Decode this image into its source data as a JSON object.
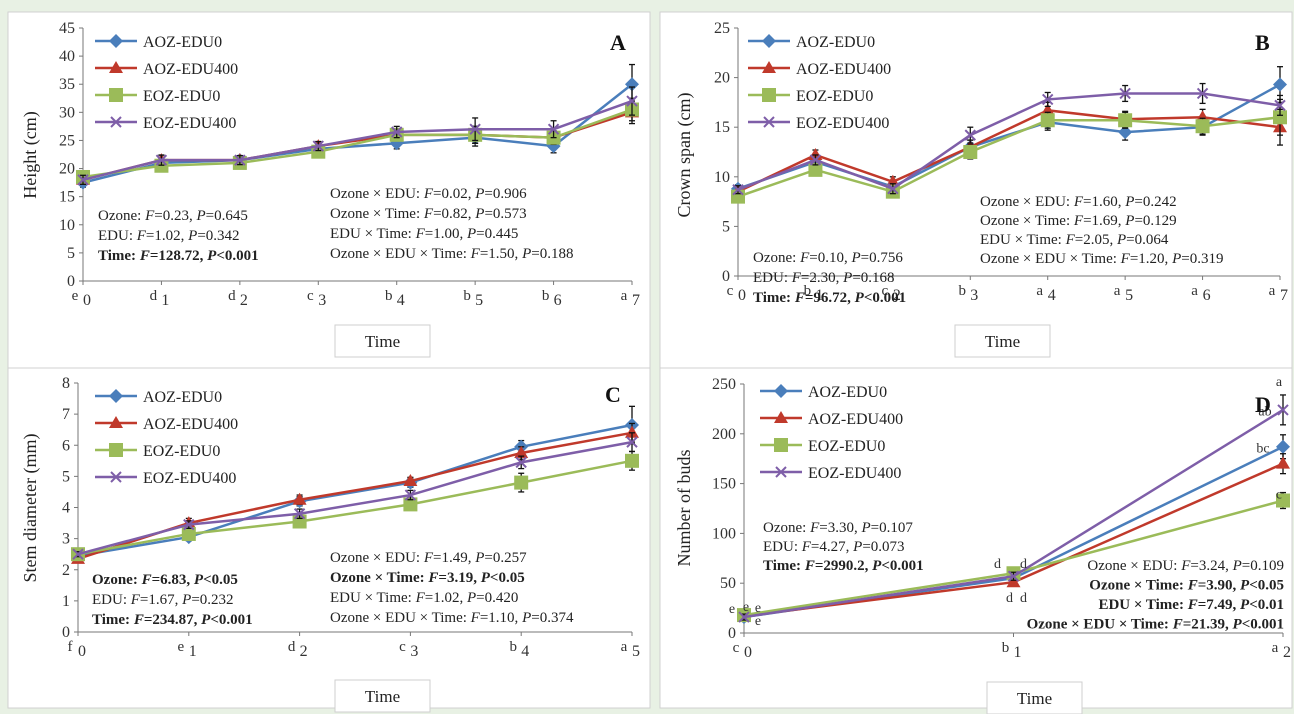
{
  "colors": {
    "AOZ-EDU0": "#4a7ebb",
    "AOZ-EDU400": "#c0392b",
    "EOZ-EDU0": "#9bbb59",
    "EOZ-EDU400": "#7e5ea8"
  },
  "chart_data": [
    {
      "panel": "A",
      "type": "line",
      "ylabel": "Height (cm)",
      "xlabel": "Time",
      "ylim": [
        0,
        45
      ],
      "yticks": [
        0,
        5,
        10,
        15,
        20,
        25,
        30,
        35,
        40,
        45
      ],
      "categories": [
        "0",
        "1",
        "2",
        "3",
        "4",
        "5",
        "6",
        "7"
      ],
      "letters": [
        "e",
        "d",
        "d",
        "c",
        "b",
        "b",
        "b",
        "a"
      ],
      "series": [
        {
          "name": "AOZ-EDU0",
          "values": [
            17.5,
            21.0,
            21.5,
            23.5,
            24.5,
            25.5,
            24.0,
            35.0
          ],
          "err": [
            0.8,
            0.9,
            0.8,
            0.8,
            1.0,
            1.5,
            1.2,
            3.5
          ]
        },
        {
          "name": "AOZ-EDU400",
          "values": [
            18.0,
            21.5,
            21.5,
            24.0,
            26.0,
            26.0,
            25.5,
            30.0
          ],
          "err": [
            0.8,
            0.9,
            0.8,
            0.8,
            1.0,
            1.5,
            1.2,
            2.0
          ]
        },
        {
          "name": "EOZ-EDU0",
          "values": [
            18.5,
            20.5,
            21.0,
            23.0,
            26.0,
            26.0,
            25.5,
            30.5
          ],
          "err": [
            0.8,
            0.9,
            0.8,
            0.8,
            1.0,
            1.5,
            1.2,
            2.0
          ]
        },
        {
          "name": "EOZ-EDU400",
          "values": [
            18.0,
            21.5,
            21.5,
            24.0,
            26.5,
            27.0,
            27.0,
            32.0
          ],
          "err": [
            0.8,
            0.9,
            0.8,
            0.8,
            1.0,
            2.0,
            1.5,
            2.5
          ]
        }
      ],
      "stats_left": [
        {
          "label": "Ozone: ",
          "F": "0.23",
          "P": "0.645",
          "bold": false
        },
        {
          "label": "EDU: ",
          "F": "1.02",
          "P": "0.342",
          "bold": false
        },
        {
          "label": "Time: ",
          "F": "128.72",
          "P": "<0.001",
          "bold": true
        }
      ],
      "stats_right": [
        {
          "label": "Ozone × EDU: ",
          "F": "0.02",
          "P": "0.906",
          "bold": false
        },
        {
          "label": "Ozone × Time: ",
          "F": "0.82",
          "P": "0.573",
          "bold": false
        },
        {
          "label": "EDU × Time: ",
          "F": "1.00",
          "P": "0.445",
          "bold": false
        },
        {
          "label": "Ozone × EDU × Time: ",
          "F": "1.50",
          "P": "0.188",
          "bold": false
        }
      ]
    },
    {
      "panel": "B",
      "type": "line",
      "ylabel": "Crown span (cm)",
      "xlabel": "Time",
      "ylim": [
        0,
        25
      ],
      "yticks": [
        0,
        5,
        10,
        15,
        20,
        25
      ],
      "categories": [
        "0",
        "1",
        "2",
        "3",
        "4",
        "5",
        "6",
        "7"
      ],
      "letters": [
        "c",
        "b",
        "c",
        "b",
        "a",
        "a",
        "a",
        "a"
      ],
      "series": [
        {
          "name": "AOZ-EDU0",
          "values": [
            8.8,
            11.5,
            9.0,
            13.0,
            15.5,
            14.5,
            15.0,
            19.3
          ],
          "err": [
            0.4,
            0.5,
            0.5,
            0.7,
            0.8,
            0.8,
            0.8,
            1.8
          ]
        },
        {
          "name": "AOZ-EDU400",
          "values": [
            8.5,
            12.2,
            9.5,
            13.0,
            16.7,
            15.8,
            16.0,
            15.0
          ],
          "err": [
            0.4,
            0.5,
            0.5,
            0.7,
            0.8,
            0.8,
            0.8,
            1.8
          ]
        },
        {
          "name": "EOZ-EDU0",
          "values": [
            8.0,
            10.7,
            8.5,
            12.5,
            15.7,
            15.7,
            15.1,
            16.0
          ],
          "err": [
            0.4,
            0.5,
            0.5,
            0.7,
            0.8,
            0.8,
            0.8,
            1.8
          ]
        },
        {
          "name": "EOZ-EDU400",
          "values": [
            8.7,
            11.7,
            8.8,
            14.2,
            17.8,
            18.4,
            18.4,
            17.2
          ],
          "err": [
            0.4,
            0.5,
            0.5,
            0.8,
            0.7,
            0.8,
            1.0,
            1.0
          ]
        }
      ],
      "stats_left": [
        {
          "label": "Ozone: ",
          "F": "0.10",
          "P": "0.756",
          "bold": false
        },
        {
          "label": "EDU: ",
          "F": "2.30",
          "P": "0.168",
          "bold": false
        },
        {
          "label": "Time: ",
          "F": "96.72",
          "P": "<0.001",
          "bold": true
        }
      ],
      "stats_right": [
        {
          "label": "Ozone × EDU: ",
          "F": "1.60",
          "P": "0.242",
          "bold": false
        },
        {
          "label": "Ozone × Time: ",
          "F": "1.69",
          "P": "0.129",
          "bold": false
        },
        {
          "label": "EDU × Time: ",
          "F": "2.05",
          "P": "0.064",
          "bold": false
        },
        {
          "label": "Ozone × EDU × Time: ",
          "F": "1.20",
          "P": "0.319",
          "bold": false
        }
      ]
    },
    {
      "panel": "C",
      "type": "line",
      "ylabel": "Stem diameter (mm)",
      "xlabel": "Time",
      "ylim": [
        0,
        8
      ],
      "yticks": [
        0,
        1,
        2,
        3,
        4,
        5,
        6,
        7,
        8
      ],
      "categories": [
        "0",
        "1",
        "2",
        "3",
        "4",
        "5"
      ],
      "letters": [
        "f",
        "e",
        "d",
        "c",
        "b",
        "a"
      ],
      "series": [
        {
          "name": "AOZ-EDU0",
          "values": [
            2.45,
            3.05,
            4.2,
            4.8,
            5.95,
            6.65
          ],
          "err": [
            0.08,
            0.12,
            0.15,
            0.15,
            0.2,
            0.6
          ]
        },
        {
          "name": "AOZ-EDU400",
          "values": [
            2.35,
            3.5,
            4.25,
            4.85,
            5.75,
            6.4
          ],
          "err": [
            0.08,
            0.15,
            0.15,
            0.12,
            0.2,
            0.3
          ]
        },
        {
          "name": "EOZ-EDU0",
          "values": [
            2.5,
            3.15,
            3.55,
            4.1,
            4.8,
            5.5
          ],
          "err": [
            0.08,
            0.12,
            0.15,
            0.15,
            0.3,
            0.3
          ]
        },
        {
          "name": "EOZ-EDU400",
          "values": [
            2.5,
            3.45,
            3.8,
            4.4,
            5.45,
            6.1
          ],
          "err": [
            0.08,
            0.12,
            0.15,
            0.15,
            0.2,
            0.3
          ]
        }
      ],
      "stats_left": [
        {
          "label": "Ozone: ",
          "F": "6.83",
          "P": "<0.05",
          "bold": true
        },
        {
          "label": "EDU: ",
          "F": "1.67",
          "P": "0.232",
          "bold": false
        },
        {
          "label": "Time: ",
          "F": "234.87",
          "P": "<0.001",
          "bold": true
        }
      ],
      "stats_right": [
        {
          "label": "Ozone × EDU: ",
          "F": "1.49",
          "P": "0.257",
          "bold": false
        },
        {
          "label": "Ozone × Time: ",
          "F": "3.19",
          "P": "<0.05",
          "bold": true
        },
        {
          "label": "EDU × Time: ",
          "F": "1.02",
          "P": "0.420",
          "bold": false
        },
        {
          "label": "Ozone × EDU × Time: ",
          "F": "1.10",
          "P": "0.374",
          "bold": false
        }
      ]
    },
    {
      "panel": "D",
      "type": "line",
      "ylabel": "Number of buds",
      "xlabel": "Time",
      "ylim": [
        0,
        250
      ],
      "yticks": [
        0,
        50,
        100,
        150,
        200,
        250
      ],
      "categories": [
        "0",
        "1",
        "2"
      ],
      "letters": [
        "c",
        "b",
        "a"
      ],
      "series": [
        {
          "name": "AOZ-EDU0",
          "values": [
            16,
            55,
            187
          ],
          "err": [
            3,
            4,
            12
          ]
        },
        {
          "name": "AOZ-EDU400",
          "values": [
            17,
            51,
            170
          ],
          "err": [
            3,
            4,
            10
          ]
        },
        {
          "name": "EOZ-EDU0",
          "values": [
            18,
            60,
            133
          ],
          "err": [
            3,
            4,
            8
          ]
        },
        {
          "name": "EOZ-EDU400",
          "values": [
            16,
            57,
            224
          ],
          "err": [
            3,
            4,
            15
          ]
        }
      ],
      "stats_left": [
        {
          "label": "Ozone: ",
          "F": "3.30",
          "P": "0.107",
          "bold": false
        },
        {
          "label": "EDU: ",
          "F": "4.27",
          "P": "0.073",
          "bold": false
        },
        {
          "label": "Time: ",
          "F": "2990.2",
          "P": "<0.001",
          "bold": true
        }
      ],
      "stats_right": [
        {
          "label": "Ozone × EDU: ",
          "F": "3.24",
          "P": "0.109",
          "bold": false
        },
        {
          "label": "Ozone × Time: ",
          "F": "3.90",
          "P": "<0.05",
          "bold": true
        },
        {
          "label": "EDU × Time: ",
          "F": "7.49",
          "P": "<0.01",
          "bold": true
        },
        {
          "label": "Ozone × EDU × Time: ",
          "F": "21.39",
          "P": "<0.001",
          "bold": true
        }
      ],
      "point_letters": [
        {
          "x": 0,
          "text": "e"
        },
        {
          "x": 0,
          "text": "e"
        },
        {
          "x": 0,
          "text": "e"
        },
        {
          "x": 0,
          "text": "e"
        },
        {
          "x": 1,
          "text": "d"
        },
        {
          "x": 1,
          "text": "d"
        },
        {
          "x": 1,
          "text": "d"
        },
        {
          "x": 1,
          "text": "d"
        },
        {
          "x": 2,
          "text": "a"
        },
        {
          "x": 2,
          "text": "ab"
        },
        {
          "x": 2,
          "text": "bc"
        },
        {
          "x": 2,
          "text": "c"
        }
      ]
    }
  ]
}
